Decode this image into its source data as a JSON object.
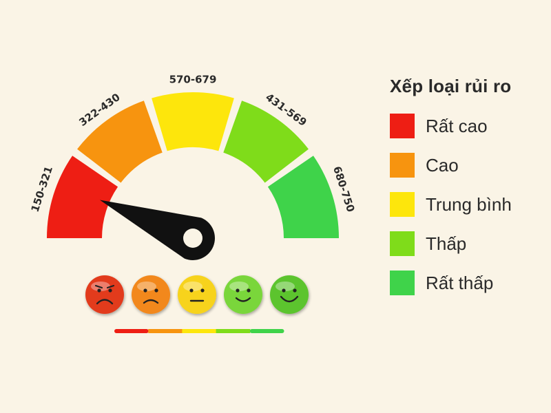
{
  "colors": {
    "background": "#faf4e6",
    "very_high": "#ee1e14",
    "high": "#f7940f",
    "medium": "#fde60c",
    "low": "#7fdc1a",
    "very_low": "#3fd34a",
    "needle": "#111111"
  },
  "gauge": {
    "segments": [
      {
        "range": "150-321",
        "color": "#ee1e14"
      },
      {
        "range": "322-430",
        "color": "#f7940f"
      },
      {
        "range": "570-679",
        "color": "#fde60c"
      },
      {
        "range": "431-569",
        "color": "#7fdc1a"
      },
      {
        "range": "680-750",
        "color": "#3fd34a"
      }
    ],
    "needle_segment_index": 0
  },
  "faces": [
    {
      "mood": "very-sad",
      "icon": "very-sad-face-icon",
      "color": "#e23a1f"
    },
    {
      "mood": "sad",
      "icon": "sad-face-icon",
      "color": "#f2881a"
    },
    {
      "mood": "neutral",
      "icon": "neutral-face-icon",
      "color": "#f7d31a"
    },
    {
      "mood": "happy",
      "icon": "happy-face-icon",
      "color": "#7ad63a"
    },
    {
      "mood": "very-happy",
      "icon": "very-happy-face-icon",
      "color": "#5cc42e"
    }
  ],
  "legend": {
    "title": "Xếp loại rủi ro",
    "items": [
      {
        "label": "Rất cao",
        "color": "#ee1e14"
      },
      {
        "label": "Cao",
        "color": "#f7940f"
      },
      {
        "label": "Trung bình",
        "color": "#fde60c"
      },
      {
        "label": "Thấp",
        "color": "#7fdc1a"
      },
      {
        "label": "Rất thấp",
        "color": "#3fd34a"
      }
    ]
  }
}
